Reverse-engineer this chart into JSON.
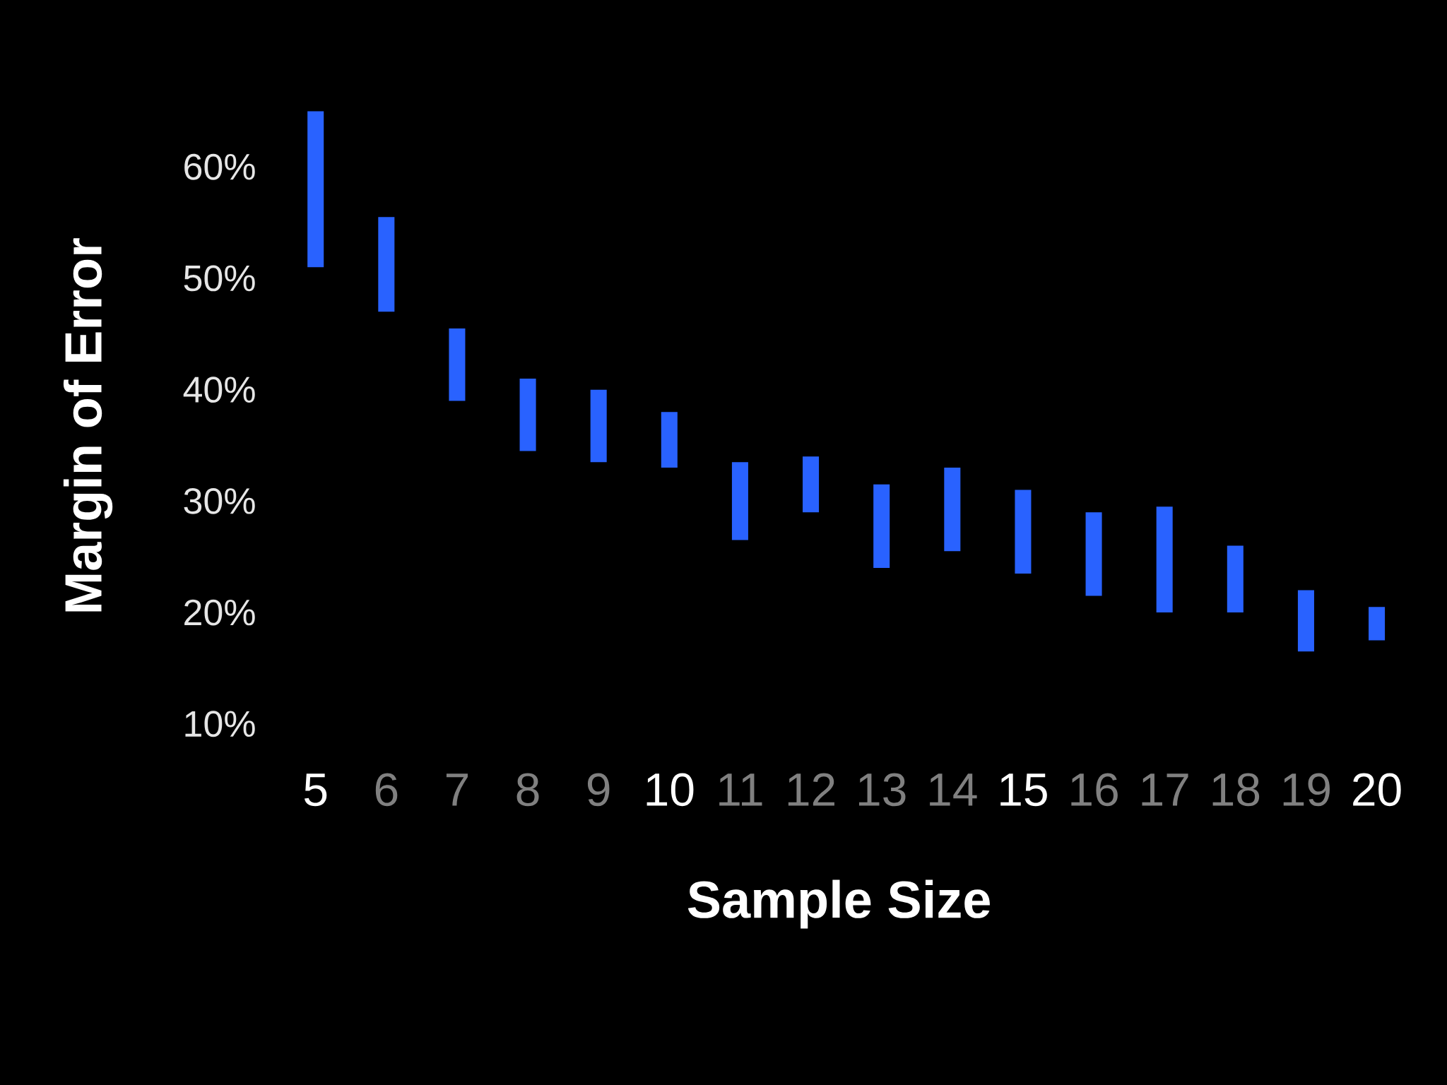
{
  "chart_data": {
    "type": "bar",
    "xlabel": "Sample Size",
    "ylabel": "Margin of Error",
    "categories": [
      "5",
      "6",
      "7",
      "8",
      "9",
      "10",
      "11",
      "12",
      "13",
      "14",
      "15",
      "16",
      "17",
      "18",
      "19",
      "20"
    ],
    "base": [
      51,
      47,
      39,
      34.5,
      33.5,
      33,
      26.5,
      29,
      24,
      25.5,
      23.5,
      21.5,
      20,
      20,
      16.5,
      17.5
    ],
    "values": [
      14,
      8.5,
      6.5,
      6.5,
      6.5,
      5,
      7,
      5,
      7.5,
      7.5,
      7.5,
      7.5,
      9.5,
      6,
      5.5,
      3
    ],
    "color": "#2962ff",
    "ylim": [
      10,
      65
    ],
    "yticks": [
      {
        "value": 10,
        "label": "10%"
      },
      {
        "value": 20,
        "label": "20%"
      },
      {
        "value": 30,
        "label": "30%"
      },
      {
        "value": 40,
        "label": "40%"
      },
      {
        "value": 50,
        "label": "50%"
      },
      {
        "value": 60,
        "label": "60%"
      }
    ]
  }
}
